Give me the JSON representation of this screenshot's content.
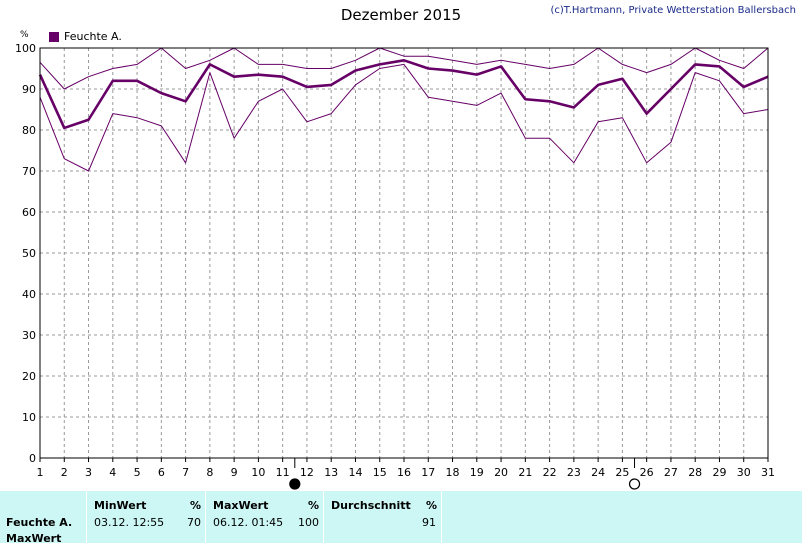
{
  "chart_data": {
    "type": "line",
    "title": "Dezember 2015",
    "copyright": "(c)T.Hartmann, Private Wetterstation Ballersbach",
    "ylabel": "%",
    "ylim": [
      0,
      100
    ],
    "yticks": [
      0,
      10,
      20,
      30,
      40,
      50,
      60,
      70,
      80,
      90,
      100
    ],
    "x": [
      1,
      2,
      3,
      4,
      5,
      6,
      7,
      8,
      9,
      10,
      11,
      12,
      13,
      14,
      15,
      16,
      17,
      18,
      19,
      20,
      21,
      22,
      23,
      24,
      25,
      26,
      27,
      28,
      29,
      30,
      31
    ],
    "grid": true,
    "legend": [
      "Feuchte A."
    ],
    "series": [
      {
        "name": "Feuchte A.",
        "values": [
          93.5,
          80.5,
          82.5,
          92,
          92,
          89,
          87,
          96,
          93,
          93.5,
          93,
          90.5,
          91,
          94.5,
          96,
          97,
          95,
          94.5,
          93.5,
          95.5,
          87.5,
          87,
          85.5,
          91,
          92.5,
          84,
          90,
          96,
          95.5,
          90.5,
          93
        ]
      },
      {
        "values": [
          96.5,
          90,
          93,
          95,
          96,
          100,
          95,
          97,
          100,
          96,
          96,
          95,
          95,
          97,
          100,
          98,
          98,
          97,
          96,
          97,
          96,
          95,
          96,
          100,
          96,
          94,
          96,
          100,
          97,
          95,
          100
        ]
      },
      {
        "values": [
          88,
          73,
          70,
          84,
          83,
          81,
          72,
          94,
          78,
          87,
          90,
          82,
          84,
          91,
          95,
          96,
          88,
          87,
          86,
          89,
          78,
          78,
          72,
          82,
          83,
          72,
          77,
          94,
          92,
          84,
          85
        ]
      }
    ],
    "moon_phases": [
      {
        "day": 11.5,
        "phase": "new-moon"
      },
      {
        "day": 25.5,
        "phase": "full-moon"
      }
    ],
    "colors": {
      "series": "#660066",
      "grid": "#999999",
      "footer_bg": "#ccf7f5"
    }
  },
  "footer": {
    "row_label": "Feuchte A.",
    "row_label2": "MaxWert",
    "min": {
      "header": "MinWert",
      "unit": "%",
      "datetime": "03.12.  12:55",
      "value": "70"
    },
    "max": {
      "header": "MaxWert",
      "unit": "%",
      "datetime": "06.12.  01:45",
      "value": "100"
    },
    "avg": {
      "header": "Durchschnitt",
      "unit": "%",
      "value": "91"
    }
  }
}
